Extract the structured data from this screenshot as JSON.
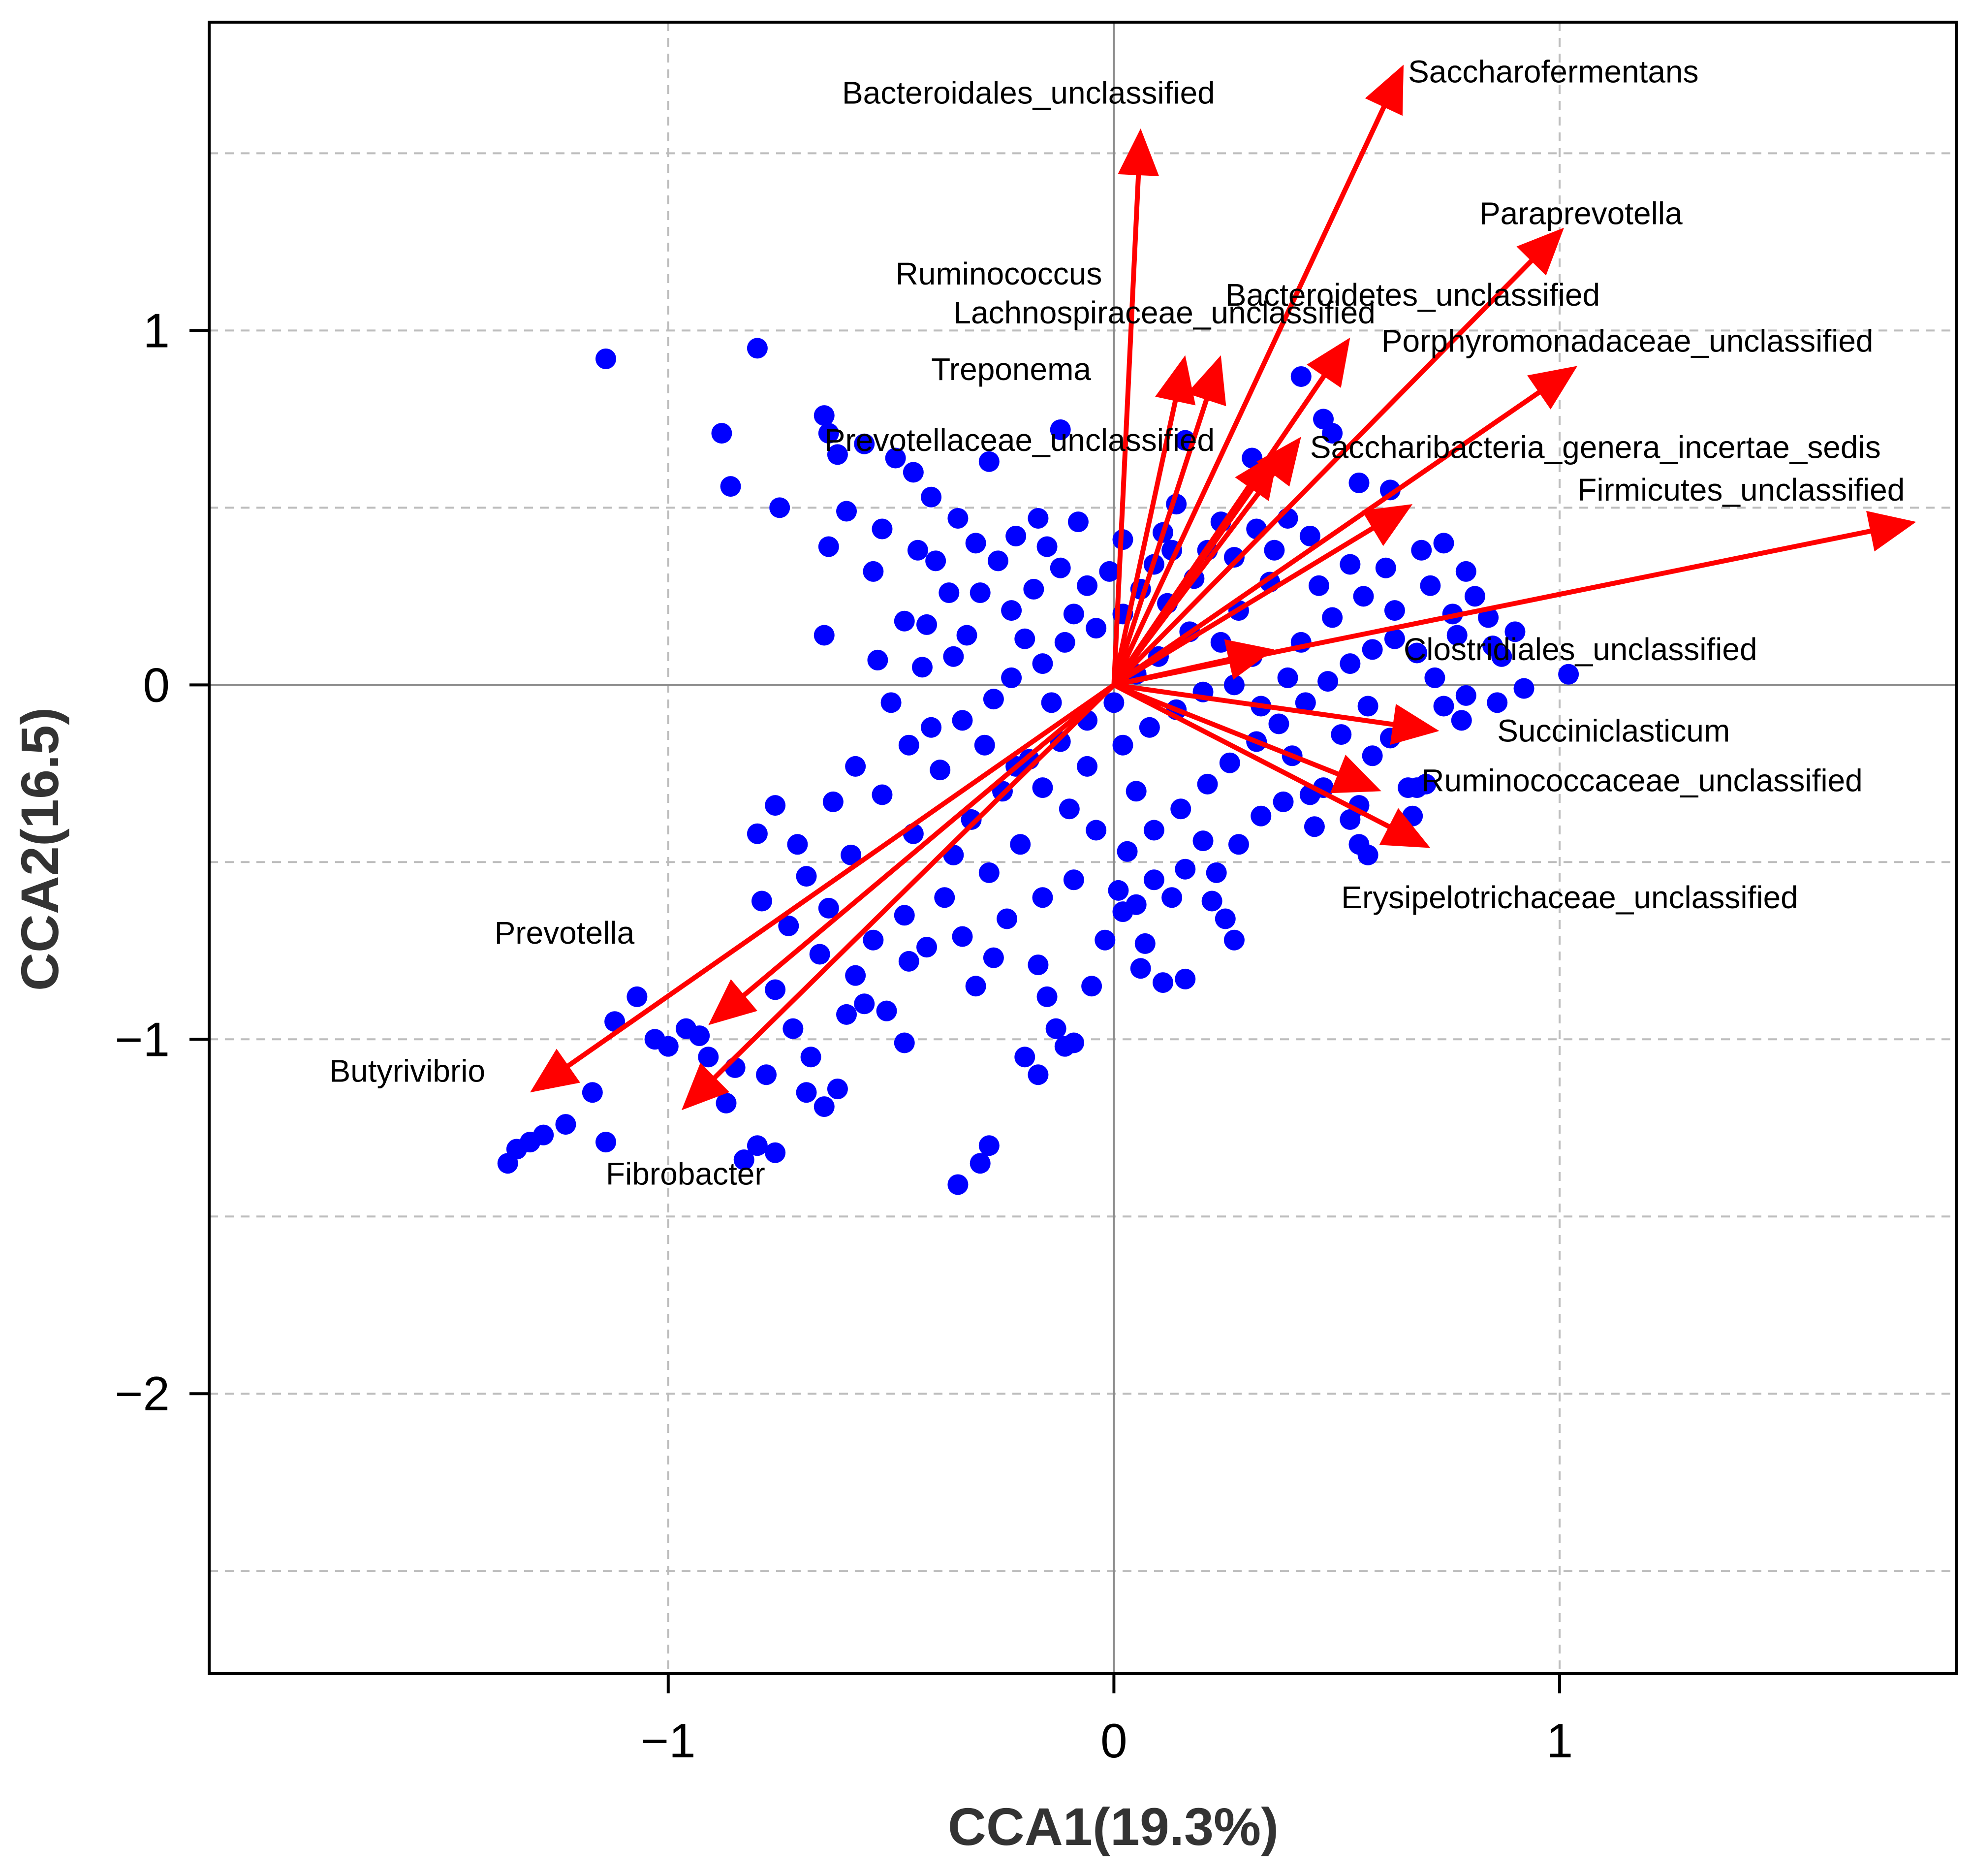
{
  "chart_data": {
    "type": "scatter",
    "title": "",
    "xlabel": "CCA1(19.3%)",
    "ylabel": "CCA2(16.5)",
    "xlim": [
      -2.03,
      1.89
    ],
    "ylim": [
      -2.79,
      1.87
    ],
    "grid": true,
    "grid_x": [
      -1,
      0,
      1
    ],
    "grid_y": [
      -2.5,
      -2,
      -1.5,
      -1,
      -0.5,
      0,
      0.5,
      1,
      1.5
    ],
    "x_ticks": [
      {
        "value": -1,
        "label": "−1"
      },
      {
        "value": 0,
        "label": "0"
      },
      {
        "value": 1,
        "label": "1"
      }
    ],
    "y_ticks": [
      {
        "value": -2,
        "label": "−2"
      },
      {
        "value": -1,
        "label": "−1"
      },
      {
        "value": 0,
        "label": "0"
      },
      {
        "value": 1,
        "label": "1"
      }
    ],
    "colors": {
      "points": "#0000ff",
      "arrows": "#ff0000"
    },
    "arrows": [
      {
        "label": "Bacteroidales_unclassified",
        "x": 0.06,
        "y": 1.57
      },
      {
        "label": "Saccharofermentans",
        "x": 0.65,
        "y": 1.75
      },
      {
        "label": "Paraprevotella",
        "x": 1.01,
        "y": 1.29
      },
      {
        "label": "Ruminococcus",
        "x": 0.16,
        "y": 0.93
      },
      {
        "label": "Lachnospiraceae_unclassified",
        "x": 0.24,
        "y": 0.93
      },
      {
        "label": "Bacteroidetes_unclassified",
        "x": 0.53,
        "y": 0.98
      },
      {
        "label": "Porphyromonadaceae_unclassified",
        "x": 1.04,
        "y": 0.9
      },
      {
        "label": "Treponema",
        "x": 0.42,
        "y": 0.7
      },
      {
        "label": "Prevotellaceae_unclassified",
        "x": 0.37,
        "y": 0.66
      },
      {
        "label": "Saccharibacteria_genera_incertae_sedis",
        "x": 0.67,
        "y": 0.51
      },
      {
        "label": "Firmicutes_unclassified",
        "x": 1.8,
        "y": 0.46
      },
      {
        "label": "Clostridiales_unclassified",
        "x": 0.36,
        "y": 0.1
      },
      {
        "label": "Succiniclasticum",
        "x": 0.73,
        "y": -0.13
      },
      {
        "label": "Ruminococcaceae_unclassified",
        "x": 0.6,
        "y": -0.3
      },
      {
        "label": "Erysipelotrichaceae_unclassified",
        "x": 0.71,
        "y": -0.46
      },
      {
        "label": "Prevotella",
        "x": -0.91,
        "y": -0.96
      },
      {
        "label": "Butyrivibrio",
        "x": -1.31,
        "y": -1.15
      },
      {
        "label": "Fibrobacter",
        "x": -0.97,
        "y": -1.2
      }
    ],
    "labels": [
      {
        "text": "Bacteroidales_unclassified",
        "x": -0.61,
        "y": 1.64
      },
      {
        "text": "Saccharofermentans",
        "x": 0.66,
        "y": 1.7
      },
      {
        "text": "Paraprevotella",
        "x": 0.82,
        "y": 1.3
      },
      {
        "text": "Ruminococcus",
        "x": -0.49,
        "y": 1.13
      },
      {
        "text": "Bacteroidetes_unclassified",
        "x": 0.25,
        "y": 1.07
      },
      {
        "text": "Lachnospiraceae_unclassified",
        "x": -0.36,
        "y": 1.02
      },
      {
        "text": "Porphyromonadaceae_unclassified",
        "x": 0.6,
        "y": 0.94
      },
      {
        "text": "Treponema",
        "x": -0.41,
        "y": 0.86
      },
      {
        "text": "Prevotellaceae_unclassified",
        "x": -0.65,
        "y": 0.66
      },
      {
        "text": "Saccharibacteria_genera_incertae_sedis",
        "x": 0.44,
        "y": 0.64
      },
      {
        "text": "Firmicutes_unclassified",
        "x": 1.04,
        "y": 0.52
      },
      {
        "text": "Clostridiales_unclassified",
        "x": 0.65,
        "y": 0.07
      },
      {
        "text": "Succiniclasticum",
        "x": 0.86,
        "y": -0.16
      },
      {
        "text": "Ruminococcaceae_unclassified",
        "x": 0.69,
        "y": -0.3
      },
      {
        "text": "Erysipelotrichaceae_unclassified",
        "x": 0.51,
        "y": -0.63
      },
      {
        "text": "Prevotella",
        "x": -1.39,
        "y": -0.73
      },
      {
        "text": "Butyrivibrio",
        "x": -1.76,
        "y": -1.12
      },
      {
        "text": "Fibrobacter",
        "x": -1.14,
        "y": -1.41
      }
    ],
    "points": [
      [
        -1.14,
        0.92
      ],
      [
        -0.8,
        0.95
      ],
      [
        -0.88,
        0.71
      ],
      [
        -0.86,
        0.56
      ],
      [
        -0.75,
        0.5
      ],
      [
        -0.65,
        0.76
      ],
      [
        -0.64,
        0.71
      ],
      [
        -0.62,
        0.65
      ],
      [
        -0.56,
        0.68
      ],
      [
        -0.49,
        0.64
      ],
      [
        -0.45,
        0.6
      ],
      [
        -0.41,
        0.53
      ],
      [
        -0.28,
        0.63
      ],
      [
        -0.12,
        0.72
      ],
      [
        0.16,
        0.69
      ],
      [
        0.42,
        0.87
      ],
      [
        0.47,
        0.75
      ],
      [
        0.49,
        0.71
      ],
      [
        0.31,
        0.64
      ],
      [
        0.55,
        0.57
      ],
      [
        0.62,
        0.55
      ],
      [
        -0.64,
        0.39
      ],
      [
        -0.6,
        0.49
      ],
      [
        -0.52,
        0.44
      ],
      [
        -0.54,
        0.32
      ],
      [
        -0.65,
        0.14
      ],
      [
        -0.53,
        0.07
      ],
      [
        -0.47,
        0.18
      ],
      [
        -0.42,
        0.17
      ],
      [
        -0.36,
        0.08
      ],
      [
        -0.5,
        -0.05
      ],
      [
        -0.46,
        -0.17
      ],
      [
        -0.58,
        -0.23
      ],
      [
        -0.63,
        -0.33
      ],
      [
        -0.71,
        -0.45
      ],
      [
        -0.76,
        -0.34
      ],
      [
        -0.8,
        -0.42
      ],
      [
        -0.69,
        -0.54
      ],
      [
        -0.64,
        -0.63
      ],
      [
        -0.79,
        -0.61
      ],
      [
        -0.73,
        -0.68
      ],
      [
        -0.66,
        -0.76
      ],
      [
        -0.58,
        -0.82
      ],
      [
        -0.54,
        -0.72
      ],
      [
        -0.47,
        -0.65
      ],
      [
        -0.46,
        -0.78
      ],
      [
        -0.42,
        -0.74
      ],
      [
        -0.38,
        -0.6
      ],
      [
        -0.34,
        -0.71
      ],
      [
        -0.31,
        -0.85
      ],
      [
        -0.27,
        -0.77
      ],
      [
        -0.24,
        -0.66
      ],
      [
        -0.17,
        -0.79
      ],
      [
        -0.15,
        -0.88
      ],
      [
        -0.13,
        -0.97
      ],
      [
        -0.09,
        -1.01
      ],
      [
        -0.05,
        -0.85
      ],
      [
        -0.02,
        -0.72
      ],
      [
        0.02,
        -0.64
      ],
      [
        0.07,
        -0.73
      ],
      [
        0.06,
        -0.8
      ],
      [
        0.05,
        -0.62
      ],
      [
        0.09,
        -0.55
      ],
      [
        0.13,
        -0.6
      ],
      [
        0.16,
        -0.52
      ],
      [
        0.22,
        -0.61
      ],
      [
        0.25,
        -0.66
      ],
      [
        0.27,
        -0.72
      ],
      [
        0.23,
        -0.53
      ],
      [
        0.28,
        -0.45
      ],
      [
        0.33,
        -0.37
      ],
      [
        0.38,
        -0.33
      ],
      [
        0.44,
        -0.31
      ],
      [
        0.47,
        -0.29
      ],
      [
        0.55,
        -0.34
      ],
      [
        0.58,
        -0.2
      ],
      [
        0.62,
        -0.15
      ],
      [
        0.66,
        -0.29
      ],
      [
        0.7,
        -0.28
      ],
      [
        0.67,
        -0.37
      ],
      [
        0.55,
        -0.45
      ],
      [
        0.74,
        -0.06
      ],
      [
        0.79,
        -0.03
      ],
      [
        0.86,
        -0.05
      ],
      [
        0.92,
        -0.01
      ],
      [
        1.02,
        0.03
      ],
      [
        0.87,
        0.08
      ],
      [
        0.84,
        0.19
      ],
      [
        0.76,
        0.2
      ],
      [
        0.71,
        0.28
      ],
      [
        0.69,
        0.38
      ],
      [
        0.74,
        0.4
      ],
      [
        0.79,
        0.32
      ],
      [
        0.77,
        0.14
      ],
      [
        0.63,
        0.21
      ],
      [
        0.56,
        0.25
      ],
      [
        0.53,
        0.34
      ],
      [
        0.46,
        0.28
      ],
      [
        0.44,
        0.42
      ],
      [
        0.39,
        0.47
      ],
      [
        0.36,
        0.38
      ],
      [
        0.32,
        0.44
      ],
      [
        0.27,
        0.36
      ],
      [
        0.24,
        0.46
      ],
      [
        0.21,
        0.38
      ],
      [
        0.14,
        0.51
      ],
      [
        0.11,
        0.43
      ],
      [
        0.09,
        0.34
      ],
      [
        -0.08,
        0.46
      ],
      [
        -0.17,
        0.47
      ],
      [
        -0.22,
        0.42
      ],
      [
        -0.26,
        0.35
      ],
      [
        -0.31,
        0.4
      ],
      [
        -0.35,
        0.47
      ],
      [
        -0.4,
        0.35
      ],
      [
        -0.3,
        0.26
      ],
      [
        -0.23,
        0.21
      ],
      [
        -0.18,
        0.27
      ],
      [
        -0.12,
        0.33
      ],
      [
        -0.06,
        0.28
      ],
      [
        0.02,
        0.2
      ],
      [
        -0.04,
        0.16
      ],
      [
        -0.11,
        0.12
      ],
      [
        -0.16,
        0.06
      ],
      [
        -0.23,
        0.02
      ],
      [
        -0.27,
        -0.04
      ],
      [
        -0.34,
        -0.1
      ],
      [
        -0.29,
        -0.17
      ],
      [
        -0.22,
        -0.23
      ],
      [
        -0.16,
        -0.29
      ],
      [
        -0.1,
        -0.35
      ],
      [
        -0.04,
        -0.41
      ],
      [
        0.03,
        -0.47
      ],
      [
        0.09,
        -0.41
      ],
      [
        0.15,
        -0.35
      ],
      [
        0.21,
        -0.28
      ],
      [
        0.26,
        -0.22
      ],
      [
        0.32,
        -0.16
      ],
      [
        0.37,
        -0.11
      ],
      [
        0.43,
        -0.05
      ],
      [
        0.48,
        0.01
      ],
      [
        0.53,
        0.06
      ],
      [
        0.58,
        0.1
      ],
      [
        0.63,
        0.13
      ],
      [
        0.31,
        0.08
      ],
      [
        0.24,
        0.12
      ],
      [
        0.17,
        0.15
      ],
      [
        0.1,
        0.08
      ],
      [
        0.05,
        0.03
      ],
      [
        0.0,
        -0.05
      ],
      [
        -0.06,
        -0.1
      ],
      [
        -0.12,
        -0.16
      ],
      [
        -0.19,
        -0.21
      ],
      [
        -0.06,
        -0.23
      ],
      [
        0.02,
        -0.17
      ],
      [
        0.08,
        -0.12
      ],
      [
        0.14,
        -0.07
      ],
      [
        0.2,
        -0.02
      ],
      [
        0.12,
        0.23
      ],
      [
        0.06,
        0.27
      ],
      [
        -0.01,
        0.32
      ],
      [
        0.18,
        0.3
      ],
      [
        -1.0,
        -1.02
      ],
      [
        -1.03,
        -1.0
      ],
      [
        -0.96,
        -0.97
      ],
      [
        -0.93,
        -0.99
      ],
      [
        -0.91,
        -1.05
      ],
      [
        -1.07,
        -0.88
      ],
      [
        -1.12,
        -0.95
      ],
      [
        -0.85,
        -1.08
      ],
      [
        -0.87,
        -1.18
      ],
      [
        -0.8,
        -1.3
      ],
      [
        -0.76,
        -1.32
      ],
      [
        -0.83,
        -1.34
      ],
      [
        -1.17,
        -1.15
      ],
      [
        -1.23,
        -1.24
      ],
      [
        -1.28,
        -1.27
      ],
      [
        -1.31,
        -1.29
      ],
      [
        -1.34,
        -1.31
      ],
      [
        -1.36,
        -1.35
      ],
      [
        -1.14,
        -1.29
      ],
      [
        -0.78,
        -1.1
      ],
      [
        -0.72,
        -0.97
      ],
      [
        -0.68,
        -1.05
      ],
      [
        -0.6,
        -0.93
      ],
      [
        -0.65,
        -1.19
      ],
      [
        -0.69,
        -1.15
      ],
      [
        -0.35,
        -1.41
      ],
      [
        -0.3,
        -1.35
      ],
      [
        -0.28,
        -1.3
      ],
      [
        -0.62,
        -1.14
      ],
      [
        -0.76,
        -0.86
      ],
      [
        -0.47,
        -1.01
      ],
      [
        -0.51,
        -0.92
      ],
      [
        -0.56,
        -0.9
      ],
      [
        0.16,
        -0.83
      ],
      [
        0.11,
        -0.84
      ],
      [
        -0.2,
        -1.05
      ],
      [
        -0.17,
        -1.1
      ],
      [
        -0.11,
        -1.02
      ],
      [
        0.78,
        -0.1
      ],
      [
        0.68,
        -0.29
      ],
      [
        0.53,
        -0.38
      ],
      [
        0.57,
        -0.48
      ],
      [
        -0.44,
        0.38
      ],
      [
        -0.37,
        0.26
      ],
      [
        -0.43,
        0.05
      ],
      [
        -0.39,
        -0.24
      ],
      [
        -0.52,
        -0.31
      ],
      [
        -0.45,
        -0.42
      ],
      [
        -0.59,
        -0.48
      ],
      [
        -0.36,
        -0.48
      ],
      [
        -0.28,
        -0.53
      ],
      [
        -0.21,
        -0.45
      ],
      [
        0.33,
        -0.06
      ],
      [
        0.42,
        0.12
      ],
      [
        0.51,
        -0.14
      ],
      [
        0.61,
        0.33
      ],
      [
        0.68,
        0.09
      ],
      [
        0.81,
        0.25
      ],
      [
        0.9,
        0.15
      ],
      [
        0.72,
        0.02
      ],
      [
        0.85,
        0.11
      ],
      [
        -0.2,
        0.13
      ],
      [
        -0.14,
        -0.05
      ],
      [
        -0.09,
        0.2
      ],
      [
        0.05,
        -0.3
      ],
      [
        0.28,
        0.21
      ],
      [
        0.35,
        0.29
      ],
      [
        0.4,
        -0.2
      ],
      [
        0.27,
        0.0
      ],
      [
        0.39,
        0.02
      ],
      [
        -0.33,
        0.14
      ],
      [
        -0.25,
        -0.3
      ],
      [
        0.13,
        0.38
      ],
      [
        0.02,
        0.41
      ],
      [
        -0.15,
        0.39
      ],
      [
        0.2,
        -0.44
      ],
      [
        0.45,
        -0.4
      ],
      [
        -0.09,
        -0.55
      ],
      [
        -0.16,
        -0.6
      ],
      [
        0.01,
        -0.58
      ],
      [
        -0.32,
        -0.38
      ],
      [
        -0.41,
        -0.12
      ],
      [
        0.49,
        0.19
      ],
      [
        0.57,
        -0.06
      ]
    ]
  }
}
